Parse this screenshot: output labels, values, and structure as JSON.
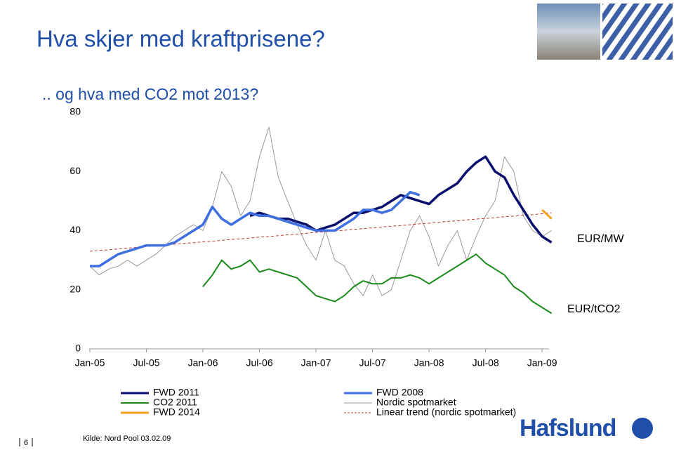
{
  "title": "Hva skjer med kraftprisene?",
  "subtitle": ".. og hva med CO2 mot 2013?",
  "source": "Kilde: Nord Pool 03.02.09",
  "page_number": "6",
  "logo": "Hafslund",
  "chart_data": {
    "type": "line",
    "annotations": [
      "EUR/MW",
      "EUR/tCO2"
    ],
    "categories": [
      "Jan-05",
      null,
      null,
      null,
      null,
      null,
      "Jul-05",
      null,
      null,
      null,
      null,
      null,
      "Jan-06",
      null,
      null,
      null,
      null,
      null,
      "Jul-06",
      null,
      null,
      null,
      null,
      null,
      "Jan-07",
      null,
      null,
      null,
      null,
      null,
      "Jul-07",
      null,
      null,
      null,
      null,
      null,
      "Jan-08",
      null,
      null,
      null,
      null,
      null,
      "Jul-08",
      null,
      null,
      null,
      null,
      null,
      "Jan-09",
      null
    ],
    "ylim": [
      0,
      80
    ],
    "yticks": [
      0,
      20,
      40,
      60,
      80
    ],
    "grid": false,
    "series": [
      {
        "name": "FWD 2011",
        "color": "#0a0f6e",
        "width": 3.5,
        "values": [
          null,
          null,
          null,
          null,
          null,
          null,
          null,
          null,
          null,
          null,
          null,
          null,
          null,
          null,
          null,
          null,
          null,
          45,
          46,
          45,
          44,
          44,
          43,
          42,
          40,
          41,
          42,
          44,
          46,
          46,
          47,
          48,
          50,
          52,
          51,
          50,
          49,
          52,
          54,
          56,
          60,
          63,
          65,
          60,
          58,
          52,
          47,
          42,
          38,
          36
        ]
      },
      {
        "name": "CO2 2011",
        "color": "#1a8a1a",
        "width": 2,
        "values": [
          null,
          null,
          null,
          null,
          null,
          null,
          null,
          null,
          null,
          null,
          null,
          null,
          21,
          25,
          30,
          27,
          28,
          30,
          26,
          27,
          26,
          25,
          24,
          21,
          18,
          17,
          16,
          18,
          21,
          23,
          22,
          22,
          24,
          24,
          25,
          24,
          22,
          24,
          26,
          28,
          30,
          32,
          29,
          27,
          25,
          21,
          19,
          16,
          14,
          12
        ]
      },
      {
        "name": "FWD 2014",
        "color": "#f5a020",
        "width": 3,
        "values": [
          null,
          null,
          null,
          null,
          null,
          null,
          null,
          null,
          null,
          null,
          null,
          null,
          null,
          null,
          null,
          null,
          null,
          null,
          null,
          null,
          null,
          null,
          null,
          null,
          null,
          null,
          null,
          null,
          null,
          null,
          null,
          null,
          null,
          null,
          null,
          null,
          null,
          null,
          null,
          null,
          null,
          null,
          null,
          null,
          null,
          null,
          null,
          null,
          47,
          44
        ]
      },
      {
        "name": "FWD 2008",
        "color": "#3d6fe0",
        "width": 3.5,
        "values": [
          28,
          28,
          30,
          32,
          33,
          34,
          35,
          35,
          35,
          36,
          38,
          40,
          42,
          48,
          44,
          42,
          44,
          46,
          45,
          45,
          44,
          43,
          42,
          41,
          40,
          40,
          40,
          42,
          44,
          47,
          47,
          46,
          47,
          50,
          53,
          52,
          null,
          null,
          null,
          null,
          null,
          null,
          null,
          null,
          null,
          null,
          null,
          null,
          null,
          null
        ]
      },
      {
        "name": "Nordic spotmarket",
        "color": "#999999",
        "width": 1,
        "values": [
          28,
          25,
          27,
          28,
          30,
          28,
          30,
          32,
          35,
          38,
          40,
          42,
          40,
          48,
          60,
          55,
          45,
          50,
          65,
          75,
          58,
          50,
          42,
          35,
          30,
          40,
          30,
          28,
          22,
          18,
          25,
          18,
          20,
          30,
          40,
          45,
          38,
          28,
          35,
          40,
          30,
          38,
          45,
          50,
          65,
          60,
          45,
          40,
          38,
          40
        ]
      },
      {
        "name": "Linear trend (nordic spotmarket)",
        "color": "#c0392b",
        "width": 1,
        "style": "dashed",
        "values": [
          33.0,
          33.3,
          33.5,
          33.8,
          34.1,
          34.3,
          34.6,
          34.9,
          35.1,
          35.4,
          35.7,
          35.9,
          36.2,
          36.4,
          36.7,
          37.0,
          37.2,
          37.5,
          37.8,
          38.0,
          38.3,
          38.6,
          38.8,
          39.1,
          39.4,
          39.6,
          39.9,
          40.1,
          40.4,
          40.7,
          40.9,
          41.2,
          41.5,
          41.7,
          42.0,
          42.3,
          42.5,
          42.8,
          43.1,
          43.3,
          43.6,
          43.9,
          44.1,
          44.4,
          44.7,
          44.9,
          45.2,
          45.4,
          45.7,
          46.0
        ]
      }
    ]
  }
}
